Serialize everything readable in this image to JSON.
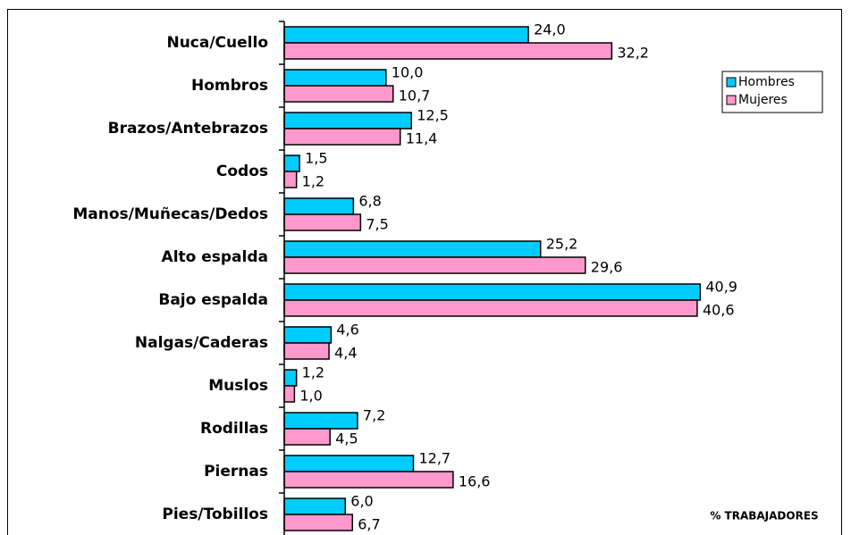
{
  "chart_data": {
    "type": "hbar",
    "categories": [
      "Nuca/Cuello",
      "Hombros",
      "Brazos/Antebrazos",
      "Codos",
      "Manos/Muñecas/Dedos",
      "Alto espalda",
      "Bajo espalda",
      "Nalgas/Caderas",
      "Muslos",
      "Rodillas",
      "Piernas",
      "Pies/Tobillos"
    ],
    "series": [
      {
        "name": "Hombres",
        "color": "#00ccff",
        "values": [
          24.0,
          10.0,
          12.5,
          1.5,
          6.8,
          25.2,
          40.9,
          4.6,
          1.2,
          7.2,
          12.7,
          6.0
        ],
        "value_labels": [
          "24,0",
          "10,0",
          "12,5",
          "1,5",
          "6,8",
          "25,2",
          "40,9",
          "4,6",
          "1,2",
          "7,2",
          "12,7",
          "6,0"
        ]
      },
      {
        "name": "Mujeres",
        "color": "#ff99cc",
        "values": [
          32.2,
          10.7,
          11.4,
          1.2,
          7.5,
          29.6,
          40.6,
          4.4,
          1.0,
          4.5,
          16.6,
          6.7
        ],
        "value_labels": [
          "32,2",
          "10,7",
          "11,4",
          "1,2",
          "7,5",
          "29,6",
          "40,6",
          "4,4",
          "1,0",
          "4,5",
          "16,6",
          "6,7"
        ]
      }
    ],
    "xlim": [
      0,
      45
    ],
    "annotation": "% TRABAJADORES",
    "legend": "right"
  }
}
